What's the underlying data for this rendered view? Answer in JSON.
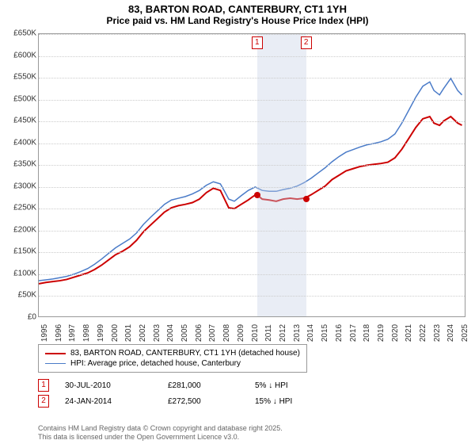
{
  "title": "83, BARTON ROAD, CANTERBURY, CT1 1YH",
  "subtitle": "Price paid vs. HM Land Registry's House Price Index (HPI)",
  "chart": {
    "type": "line",
    "background_color": "#ffffff",
    "grid_color": "#cccccc",
    "border_color": "#999999",
    "x_years": [
      1995,
      1996,
      1997,
      1998,
      1999,
      2000,
      2001,
      2002,
      2003,
      2004,
      2005,
      2006,
      2007,
      2008,
      2009,
      2010,
      2011,
      2012,
      2013,
      2014,
      2015,
      2016,
      2017,
      2018,
      2019,
      2020,
      2021,
      2022,
      2023,
      2024,
      2025
    ],
    "xlim": [
      1995,
      2025.5
    ],
    "ylim": [
      0,
      650000
    ],
    "ytick_step": 50000,
    "ytick_labels": [
      "£0",
      "£50K",
      "£100K",
      "£150K",
      "£200K",
      "£250K",
      "£300K",
      "£350K",
      "£400K",
      "£450K",
      "£500K",
      "£550K",
      "£600K",
      "£650K"
    ],
    "series": [
      {
        "name": "property",
        "label": "83, BARTON ROAD, CANTERBURY, CT1 1YH (detached house)",
        "color": "#cc0000",
        "width": 2,
        "data": [
          [
            1995,
            75000
          ],
          [
            1995.5,
            78000
          ],
          [
            1996,
            80000
          ],
          [
            1996.5,
            82000
          ],
          [
            1997,
            85000
          ],
          [
            1997.5,
            90000
          ],
          [
            1998,
            95000
          ],
          [
            1998.5,
            100000
          ],
          [
            1999,
            108000
          ],
          [
            1999.5,
            118000
          ],
          [
            2000,
            130000
          ],
          [
            2000.5,
            142000
          ],
          [
            2001,
            150000
          ],
          [
            2001.5,
            160000
          ],
          [
            2002,
            175000
          ],
          [
            2002.5,
            195000
          ],
          [
            2003,
            210000
          ],
          [
            2003.5,
            225000
          ],
          [
            2004,
            240000
          ],
          [
            2004.5,
            250000
          ],
          [
            2005,
            255000
          ],
          [
            2005.5,
            258000
          ],
          [
            2006,
            262000
          ],
          [
            2006.5,
            270000
          ],
          [
            2007,
            285000
          ],
          [
            2007.5,
            295000
          ],
          [
            2008,
            290000
          ],
          [
            2008.3,
            270000
          ],
          [
            2008.6,
            250000
          ],
          [
            2009,
            248000
          ],
          [
            2009.5,
            258000
          ],
          [
            2010,
            268000
          ],
          [
            2010.3,
            275000
          ],
          [
            2010.58,
            281000
          ],
          [
            2011,
            270000
          ],
          [
            2011.5,
            268000
          ],
          [
            2012,
            265000
          ],
          [
            2012.5,
            270000
          ],
          [
            2013,
            272000
          ],
          [
            2013.5,
            270000
          ],
          [
            2014.07,
            272500
          ],
          [
            2014.5,
            280000
          ],
          [
            2015,
            290000
          ],
          [
            2015.5,
            300000
          ],
          [
            2016,
            315000
          ],
          [
            2016.5,
            325000
          ],
          [
            2017,
            335000
          ],
          [
            2017.5,
            340000
          ],
          [
            2018,
            345000
          ],
          [
            2018.5,
            348000
          ],
          [
            2019,
            350000
          ],
          [
            2019.5,
            352000
          ],
          [
            2020,
            355000
          ],
          [
            2020.5,
            365000
          ],
          [
            2021,
            385000
          ],
          [
            2021.5,
            410000
          ],
          [
            2022,
            435000
          ],
          [
            2022.5,
            455000
          ],
          [
            2023,
            460000
          ],
          [
            2023.3,
            445000
          ],
          [
            2023.7,
            440000
          ],
          [
            2024,
            450000
          ],
          [
            2024.5,
            460000
          ],
          [
            2025,
            445000
          ],
          [
            2025.3,
            440000
          ]
        ]
      },
      {
        "name": "hpi",
        "label": "HPI: Average price, detached house, Canterbury",
        "color": "#4a7bc8",
        "width": 1.5,
        "data": [
          [
            1995,
            82000
          ],
          [
            1995.5,
            84000
          ],
          [
            1996,
            86000
          ],
          [
            1996.5,
            89000
          ],
          [
            1997,
            92000
          ],
          [
            1997.5,
            97000
          ],
          [
            1998,
            103000
          ],
          [
            1998.5,
            110000
          ],
          [
            1999,
            120000
          ],
          [
            1999.5,
            132000
          ],
          [
            2000,
            145000
          ],
          [
            2000.5,
            158000
          ],
          [
            2001,
            168000
          ],
          [
            2001.5,
            178000
          ],
          [
            2002,
            192000
          ],
          [
            2002.5,
            212000
          ],
          [
            2003,
            228000
          ],
          [
            2003.5,
            243000
          ],
          [
            2004,
            258000
          ],
          [
            2004.5,
            268000
          ],
          [
            2005,
            272000
          ],
          [
            2005.5,
            276000
          ],
          [
            2006,
            282000
          ],
          [
            2006.5,
            290000
          ],
          [
            2007,
            302000
          ],
          [
            2007.5,
            310000
          ],
          [
            2008,
            305000
          ],
          [
            2008.3,
            288000
          ],
          [
            2008.6,
            270000
          ],
          [
            2009,
            265000
          ],
          [
            2009.5,
            278000
          ],
          [
            2010,
            290000
          ],
          [
            2010.5,
            298000
          ],
          [
            2011,
            290000
          ],
          [
            2011.5,
            288000
          ],
          [
            2012,
            288000
          ],
          [
            2012.5,
            292000
          ],
          [
            2013,
            295000
          ],
          [
            2013.5,
            300000
          ],
          [
            2014,
            308000
          ],
          [
            2014.5,
            318000
          ],
          [
            2015,
            330000
          ],
          [
            2015.5,
            342000
          ],
          [
            2016,
            356000
          ],
          [
            2016.5,
            368000
          ],
          [
            2017,
            378000
          ],
          [
            2017.5,
            384000
          ],
          [
            2018,
            390000
          ],
          [
            2018.5,
            395000
          ],
          [
            2019,
            398000
          ],
          [
            2019.5,
            402000
          ],
          [
            2020,
            408000
          ],
          [
            2020.5,
            420000
          ],
          [
            2021,
            445000
          ],
          [
            2021.5,
            475000
          ],
          [
            2022,
            505000
          ],
          [
            2022.5,
            530000
          ],
          [
            2023,
            540000
          ],
          [
            2023.3,
            520000
          ],
          [
            2023.7,
            510000
          ],
          [
            2024,
            525000
          ],
          [
            2024.5,
            548000
          ],
          [
            2025,
            520000
          ],
          [
            2025.3,
            510000
          ]
        ]
      }
    ],
    "highlight_band": {
      "start": 2010.58,
      "end": 2014.07,
      "color": "rgba(200,210,230,0.4)"
    },
    "sale_markers": [
      {
        "num": "1",
        "x": 2010.58,
        "y_price": 281000,
        "border_color": "#cc0000"
      },
      {
        "num": "2",
        "x": 2014.07,
        "y_price": 272500,
        "border_color": "#cc0000"
      }
    ]
  },
  "legend": {
    "rows": [
      {
        "color": "#cc0000",
        "thickness": 2,
        "label": "83, BARTON ROAD, CANTERBURY, CT1 1YH (detached house)"
      },
      {
        "color": "#4a7bc8",
        "thickness": 1.5,
        "label": "HPI: Average price, detached house, Canterbury"
      }
    ]
  },
  "sales_table": [
    {
      "marker": "1",
      "marker_color": "#cc0000",
      "date": "30-JUL-2010",
      "price": "£281,000",
      "diff": "5% ↓ HPI"
    },
    {
      "marker": "2",
      "marker_color": "#cc0000",
      "date": "24-JAN-2014",
      "price": "£272,500",
      "diff": "15% ↓ HPI"
    }
  ],
  "footer": {
    "line1": "Contains HM Land Registry data © Crown copyright and database right 2025.",
    "line2": "This data is licensed under the Open Government Licence v3.0."
  },
  "fonts": {
    "title_size": 13,
    "axis_size": 10,
    "legend_size": 10,
    "footer_size": 9
  }
}
